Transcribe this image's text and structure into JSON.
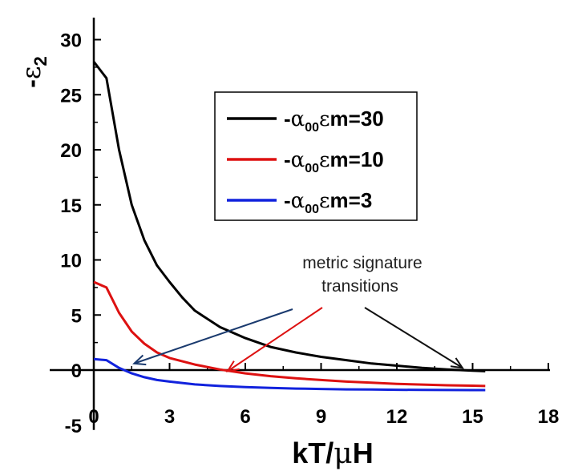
{
  "chart_data": {
    "type": "line",
    "title": "",
    "xlabel_parts": {
      "main": "kT/",
      "mu": "μ",
      "tail": "H"
    },
    "ylabel_parts": {
      "sign": "-",
      "eps": "ε",
      "sub": "2"
    },
    "xlim": [
      0,
      18
    ],
    "ylim": [
      -5,
      32
    ],
    "x_ticks": [
      0,
      3,
      6,
      9,
      12,
      15,
      18
    ],
    "y_ticks": [
      -5,
      0,
      5,
      10,
      15,
      20,
      25,
      30
    ],
    "x_tick_labels": [
      "0",
      "3",
      "6",
      "9",
      "12",
      "15",
      "18"
    ],
    "y_tick_labels": [
      "-5",
      "0",
      "5",
      "10",
      "15",
      "20",
      "25",
      "30"
    ],
    "grid": false,
    "legend_position": "upper-right",
    "series": [
      {
        "legend": {
          "pre": "-",
          "alpha": "α",
          "sub": "00",
          "eps": "ε",
          "post": "m=30"
        },
        "color": "#000000",
        "x": [
          0,
          0.5,
          1,
          1.5,
          2,
          2.5,
          3,
          3.5,
          4,
          5,
          6,
          7,
          8,
          9,
          10,
          11,
          12,
          13,
          14,
          15,
          15.5
        ],
        "y": [
          28,
          26.5,
          20,
          15,
          11.8,
          9.5,
          8,
          6.6,
          5.4,
          3.9,
          2.9,
          2.1,
          1.6,
          1.2,
          0.9,
          0.6,
          0.4,
          0.2,
          0.05,
          -0.05,
          -0.1
        ]
      },
      {
        "legend": {
          "pre": "-",
          "alpha": "α",
          "sub": "00",
          "eps": "ε",
          "post": "m=10"
        },
        "color": "#dd1111",
        "x": [
          0,
          0.5,
          1,
          1.5,
          2,
          2.5,
          3,
          4,
          5,
          6,
          7,
          8,
          9,
          10,
          11,
          12,
          13,
          14,
          15,
          15.5
        ],
        "y": [
          8,
          7.5,
          5.2,
          3.5,
          2.4,
          1.6,
          1.1,
          0.5,
          0.05,
          -0.3,
          -0.55,
          -0.75,
          -0.9,
          -1.05,
          -1.15,
          -1.25,
          -1.32,
          -1.38,
          -1.42,
          -1.45
        ]
      },
      {
        "legend": {
          "pre": "-",
          "alpha": "α",
          "sub": "00",
          "eps": "ε",
          "post": "m=3"
        },
        "color": "#1122dd",
        "x": [
          0,
          0.5,
          1,
          1.5,
          2,
          2.5,
          3,
          4,
          5,
          6,
          7,
          8,
          9,
          10,
          11,
          12,
          13,
          14,
          15,
          15.5
        ],
        "y": [
          1,
          0.9,
          0.2,
          -0.3,
          -0.65,
          -0.9,
          -1.05,
          -1.3,
          -1.45,
          -1.55,
          -1.62,
          -1.68,
          -1.72,
          -1.75,
          -1.77,
          -1.79,
          -1.8,
          -1.81,
          -1.82,
          -1.82
        ]
      }
    ],
    "annotation": {
      "lines": [
        "metric signature",
        "transitions"
      ],
      "arrows": [
        {
          "color": "#1a3a6e",
          "target": [
            1.6,
            0.6
          ]
        },
        {
          "color": "#dd1111",
          "target": [
            5.3,
            -0.1
          ]
        },
        {
          "color": "#111111",
          "target": [
            14.6,
            0.2
          ]
        }
      ]
    }
  }
}
